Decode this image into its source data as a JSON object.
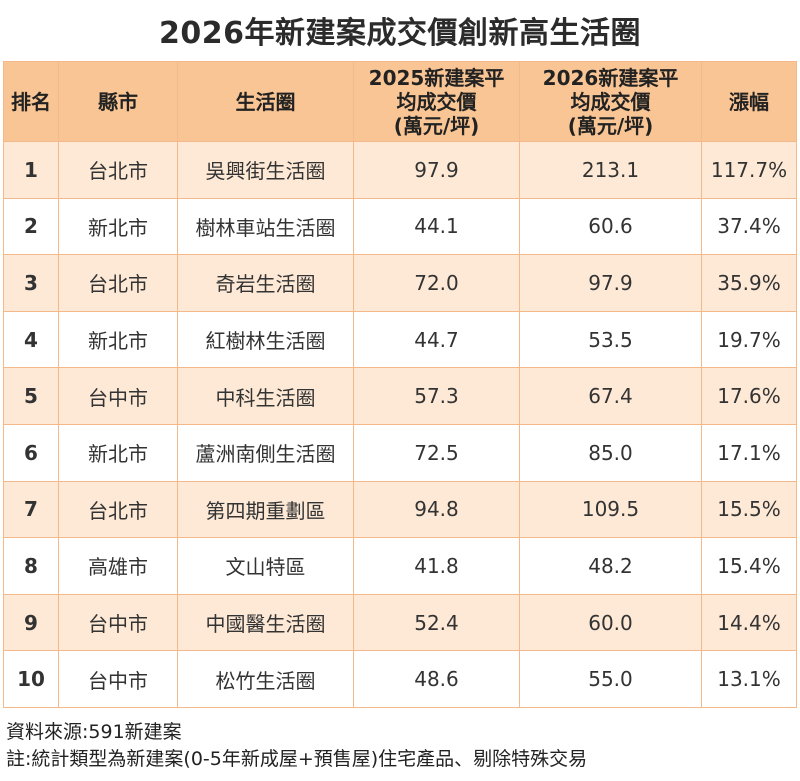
{
  "chart_data": {
    "type": "table",
    "title": "2026年新建案成交價創新高生活圈",
    "columns": [
      "排名",
      "縣市",
      "生活圈",
      "2025新建案平均成交價(萬元/坪)",
      "2026新建案平均成交價(萬元/坪)",
      "漲幅"
    ],
    "header": {
      "rank": "排名",
      "city": "縣市",
      "area": "生活圈",
      "p2025_l1": "2025新建案平",
      "p2025_l2": "均成交價",
      "p2025_l3": "(萬元/坪)",
      "p2026_l1": "2026新建案平",
      "p2026_l2": "均成交價",
      "p2026_l3": "(萬元/坪)",
      "change": "漲幅"
    },
    "rows": [
      {
        "rank": "1",
        "city": "台北市",
        "area": "吳興街生活圈",
        "p2025": "97.9",
        "p2026": "213.1",
        "change": "117.7%"
      },
      {
        "rank": "2",
        "city": "新北市",
        "area": "樹林車站生活圈",
        "p2025": "44.1",
        "p2026": "60.6",
        "change": "37.4%"
      },
      {
        "rank": "3",
        "city": "台北市",
        "area": "奇岩生活圈",
        "p2025": "72.0",
        "p2026": "97.9",
        "change": "35.9%"
      },
      {
        "rank": "4",
        "city": "新北市",
        "area": "紅樹林生活圈",
        "p2025": "44.7",
        "p2026": "53.5",
        "change": "19.7%"
      },
      {
        "rank": "5",
        "city": "台中市",
        "area": "中科生活圈",
        "p2025": "57.3",
        "p2026": "67.4",
        "change": "17.6%"
      },
      {
        "rank": "6",
        "city": "新北市",
        "area": "蘆洲南側生活圈",
        "p2025": "72.5",
        "p2026": "85.0",
        "change": "17.1%"
      },
      {
        "rank": "7",
        "city": "台北市",
        "area": "第四期重劃區",
        "p2025": "94.8",
        "p2026": "109.5",
        "change": "15.5%"
      },
      {
        "rank": "8",
        "city": "高雄市",
        "area": "文山特區",
        "p2025": "41.8",
        "p2026": "48.2",
        "change": "15.4%"
      },
      {
        "rank": "9",
        "city": "台中市",
        "area": "中國醫生活圈",
        "p2025": "52.4",
        "p2026": "60.0",
        "change": "14.4%"
      },
      {
        "rank": "10",
        "city": "台中市",
        "area": "松竹生活圈",
        "p2025": "48.6",
        "p2026": "55.0",
        "change": "13.1%"
      }
    ]
  },
  "footer": {
    "source": "資料來源:591新建案",
    "note": "註:統計類型為新建案(0-5年新成屋+預售屋)住宅產品、剔除特殊交易"
  },
  "colors": {
    "header_bg": "#f9c594",
    "odd_row_bg": "#fde9d6",
    "even_row_bg": "#ffffff",
    "border": "#f3b98a"
  }
}
